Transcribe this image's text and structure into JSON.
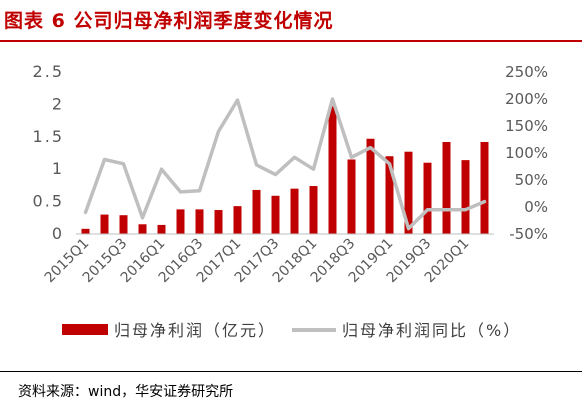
{
  "figure": {
    "title": "图表 6 公司归母净利润季度变化情况",
    "source": "资料来源：wind，华安证券研究所"
  },
  "chart_data": {
    "type": "bar+line",
    "categories": [
      "2015Q1",
      "2015Q2",
      "2015Q3",
      "2015Q4",
      "2016Q1",
      "2016Q2",
      "2016Q3",
      "2016Q4",
      "2017Q1",
      "2017Q2",
      "2017Q3",
      "2017Q4",
      "2018Q1",
      "2018Q2",
      "2018Q3",
      "2018Q4",
      "2019Q1",
      "2019Q2",
      "2019Q3",
      "2019Q4",
      "2020Q1",
      "2020Q2"
    ],
    "x_tick_labels": [
      "2015Q1",
      "",
      "2015Q3",
      "",
      "2016Q1",
      "",
      "2016Q3",
      "",
      "2017Q1",
      "",
      "2017Q3",
      "",
      "2018Q1",
      "",
      "2018Q3",
      "",
      "2019Q1",
      "",
      "2019Q3",
      "",
      "2020Q1",
      ""
    ],
    "series": [
      {
        "name": "归母净利润（亿元）",
        "kind": "bar",
        "axis": "left",
        "color": "#c00000",
        "values": [
          0.08,
          0.3,
          0.29,
          0.15,
          0.14,
          0.38,
          0.38,
          0.37,
          0.43,
          0.68,
          0.59,
          0.7,
          0.74,
          1.97,
          1.15,
          1.47,
          1.2,
          1.27,
          1.1,
          1.42,
          1.14,
          1.42
        ]
      },
      {
        "name": "归母净利润同比（%）",
        "kind": "line",
        "axis": "right",
        "color": "#bfbfbf",
        "values": [
          -10,
          88,
          80,
          -20,
          70,
          28,
          30,
          140,
          198,
          78,
          60,
          92,
          70,
          200,
          92,
          110,
          80,
          -40,
          -5,
          -5,
          -5,
          10
        ]
      }
    ],
    "y_left": {
      "min": 0,
      "max": 2.5,
      "ticks": [
        0,
        0.5,
        1,
        1.5,
        2,
        2.5
      ],
      "tick_labels": [
        "0",
        "0.5",
        "1",
        "1.5",
        "2",
        "2.5"
      ]
    },
    "y_right": {
      "min": -50,
      "max": 250,
      "ticks": [
        -50,
        0,
        50,
        100,
        150,
        200,
        250
      ],
      "tick_labels": [
        "-50%",
        "0%",
        "50%",
        "100%",
        "150%",
        "200%",
        "250%"
      ]
    },
    "grid": false,
    "legend_position": "bottom"
  }
}
